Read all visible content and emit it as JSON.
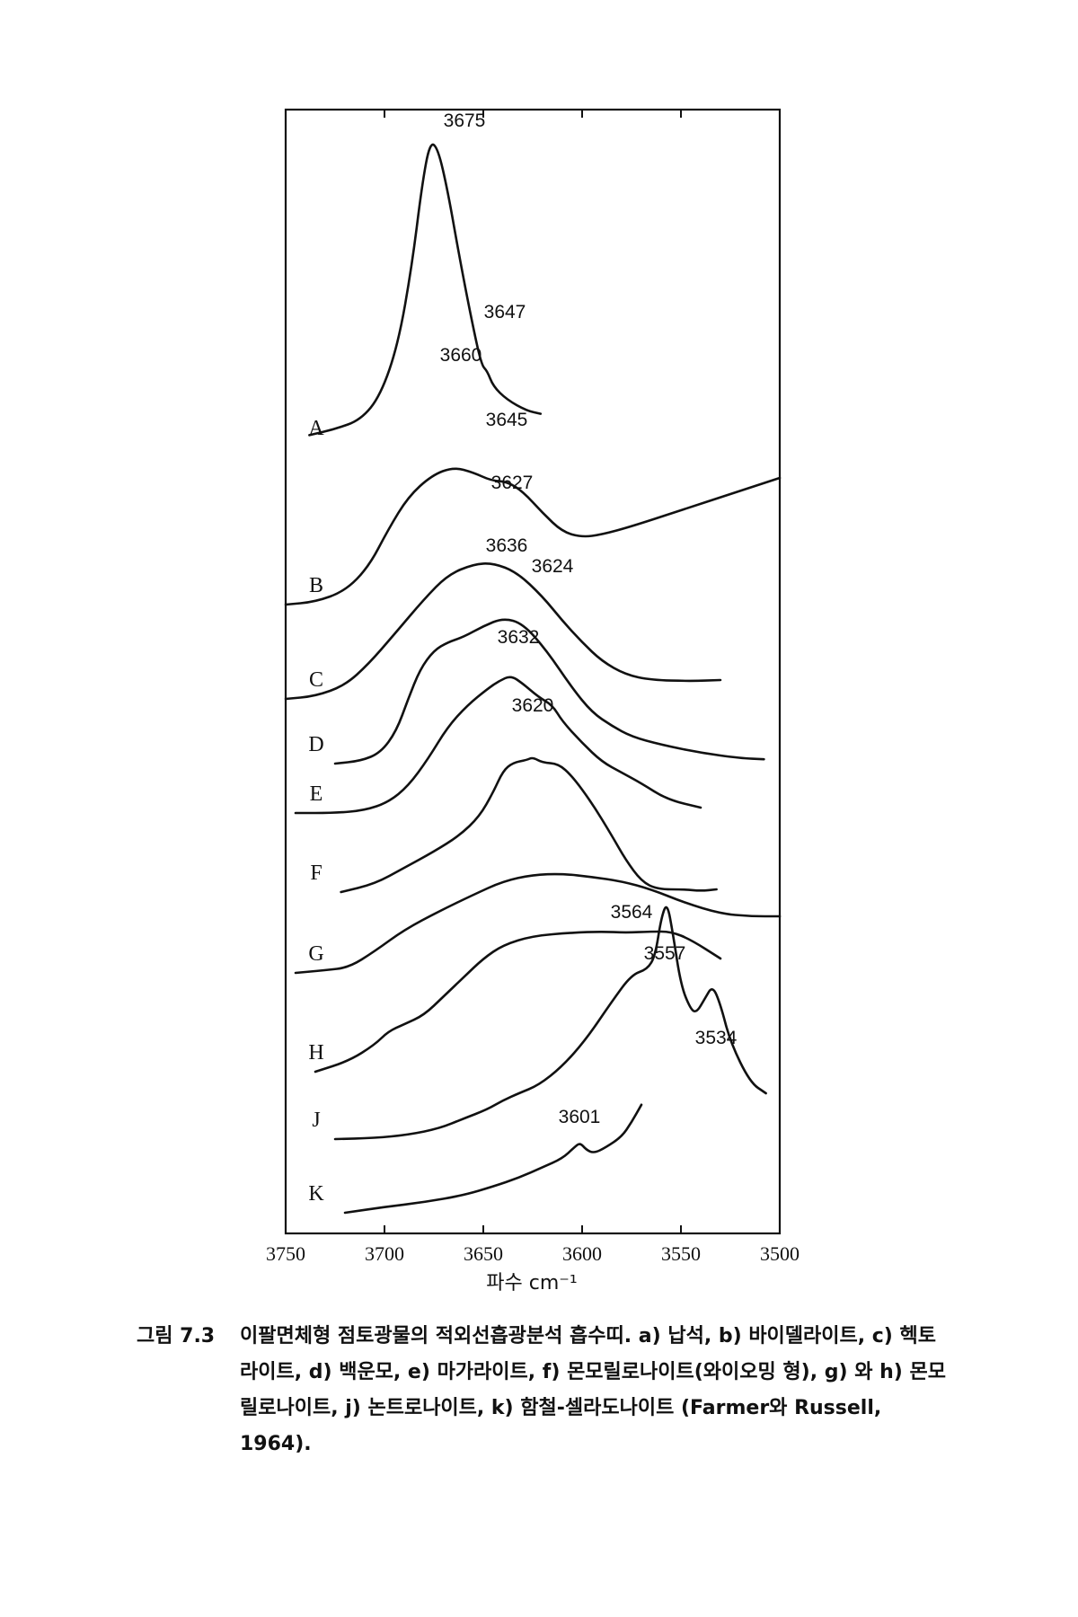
{
  "chart_data": {
    "type": "line",
    "x_axis": {
      "label": "파수 cm⁻¹",
      "range": [
        3750,
        3500
      ],
      "reversed": true,
      "ticks": [
        3750,
        3700,
        3650,
        3600,
        3550,
        3500
      ]
    },
    "y_axis": {
      "label": "",
      "ticks_shown": false
    },
    "grid": false,
    "series": [
      {
        "name": "A",
        "points": [
          [
            3738,
            0.2
          ],
          [
            3725,
            0.3
          ],
          [
            3712,
            0.45
          ],
          [
            3702,
            0.85
          ],
          [
            3693,
            1.7
          ],
          [
            3686,
            3.0
          ],
          [
            3681,
            4.3
          ],
          [
            3677,
            5.0
          ],
          [
            3673,
            4.9
          ],
          [
            3668,
            4.2
          ],
          [
            3662,
            3.1
          ],
          [
            3656,
            2.1
          ],
          [
            3651,
            1.35
          ],
          [
            3648,
            1.25
          ],
          [
            3645,
            1.0
          ],
          [
            3638,
            0.78
          ],
          [
            3628,
            0.6
          ],
          [
            3621,
            0.55
          ]
        ]
      },
      {
        "name": "B",
        "points": [
          [
            3750,
            0.0
          ],
          [
            3735,
            0.05
          ],
          [
            3720,
            0.25
          ],
          [
            3708,
            0.7
          ],
          [
            3698,
            1.4
          ],
          [
            3688,
            2.0
          ],
          [
            3676,
            2.4
          ],
          [
            3665,
            2.55
          ],
          [
            3655,
            2.45
          ],
          [
            3646,
            2.3
          ],
          [
            3638,
            2.28
          ],
          [
            3630,
            2.1
          ],
          [
            3620,
            1.7
          ],
          [
            3610,
            1.35
          ],
          [
            3600,
            1.25
          ],
          [
            3590,
            1.3
          ],
          [
            3575,
            1.45
          ],
          [
            3550,
            1.75
          ],
          [
            3525,
            2.05
          ],
          [
            3500,
            2.35
          ]
        ]
      },
      {
        "name": "C",
        "points": [
          [
            3750,
            0.0
          ],
          [
            3735,
            0.05
          ],
          [
            3720,
            0.25
          ],
          [
            3708,
            0.65
          ],
          [
            3695,
            1.2
          ],
          [
            3680,
            1.85
          ],
          [
            3668,
            2.3
          ],
          [
            3655,
            2.5
          ],
          [
            3645,
            2.52
          ],
          [
            3633,
            2.35
          ],
          [
            3620,
            1.9
          ],
          [
            3610,
            1.45
          ],
          [
            3600,
            1.05
          ],
          [
            3590,
            0.7
          ],
          [
            3578,
            0.45
          ],
          [
            3565,
            0.35
          ],
          [
            3545,
            0.33
          ],
          [
            3530,
            0.35
          ]
        ]
      },
      {
        "name": "D",
        "points": [
          [
            3725,
            0.0
          ],
          [
            3712,
            0.05
          ],
          [
            3702,
            0.2
          ],
          [
            3694,
            0.6
          ],
          [
            3688,
            1.2
          ],
          [
            3682,
            1.75
          ],
          [
            3675,
            2.1
          ],
          [
            3668,
            2.25
          ],
          [
            3660,
            2.35
          ],
          [
            3650,
            2.55
          ],
          [
            3640,
            2.7
          ],
          [
            3630,
            2.6
          ],
          [
            3618,
            2.1
          ],
          [
            3605,
            1.4
          ],
          [
            3595,
            0.95
          ],
          [
            3585,
            0.7
          ],
          [
            3575,
            0.5
          ],
          [
            3560,
            0.35
          ],
          [
            3540,
            0.2
          ],
          [
            3520,
            0.1
          ],
          [
            3508,
            0.08
          ]
        ]
      },
      {
        "name": "E",
        "points": [
          [
            3745,
            0.0
          ],
          [
            3725,
            0.0
          ],
          [
            3710,
            0.05
          ],
          [
            3698,
            0.2
          ],
          [
            3688,
            0.5
          ],
          [
            3678,
            1.0
          ],
          [
            3668,
            1.6
          ],
          [
            3658,
            2.0
          ],
          [
            3648,
            2.3
          ],
          [
            3642,
            2.45
          ],
          [
            3636,
            2.55
          ],
          [
            3630,
            2.4
          ],
          [
            3622,
            2.15
          ],
          [
            3615,
            2.0
          ],
          [
            3610,
            1.7
          ],
          [
            3600,
            1.3
          ],
          [
            3590,
            0.95
          ],
          [
            3580,
            0.75
          ],
          [
            3570,
            0.55
          ],
          [
            3557,
            0.25
          ],
          [
            3540,
            0.1
          ]
        ]
      },
      {
        "name": "F",
        "points": [
          [
            3722,
            0.0
          ],
          [
            3705,
            0.15
          ],
          [
            3690,
            0.45
          ],
          [
            3675,
            0.75
          ],
          [
            3662,
            1.05
          ],
          [
            3652,
            1.4
          ],
          [
            3645,
            1.85
          ],
          [
            3640,
            2.25
          ],
          [
            3635,
            2.4
          ],
          [
            3628,
            2.45
          ],
          [
            3625,
            2.5
          ],
          [
            3620,
            2.4
          ],
          [
            3612,
            2.38
          ],
          [
            3605,
            2.15
          ],
          [
            3595,
            1.65
          ],
          [
            3585,
            1.05
          ],
          [
            3578,
            0.6
          ],
          [
            3570,
            0.2
          ],
          [
            3562,
            0.05
          ],
          [
            3548,
            0.05
          ],
          [
            3540,
            0.02
          ],
          [
            3532,
            0.05
          ]
        ]
      },
      {
        "name": "G",
        "points": [
          [
            3745,
            0.0
          ],
          [
            3730,
            0.05
          ],
          [
            3718,
            0.1
          ],
          [
            3705,
            0.4
          ],
          [
            3690,
            0.8
          ],
          [
            3672,
            1.15
          ],
          [
            3655,
            1.45
          ],
          [
            3640,
            1.7
          ],
          [
            3625,
            1.82
          ],
          [
            3610,
            1.84
          ],
          [
            3595,
            1.78
          ],
          [
            3580,
            1.7
          ],
          [
            3565,
            1.55
          ],
          [
            3548,
            1.3
          ],
          [
            3530,
            1.1
          ],
          [
            3515,
            1.05
          ],
          [
            3500,
            1.05
          ]
        ]
      },
      {
        "name": "H",
        "points": [
          [
            3735,
            0.0
          ],
          [
            3718,
            0.2
          ],
          [
            3705,
            0.5
          ],
          [
            3698,
            0.75
          ],
          [
            3690,
            0.88
          ],
          [
            3680,
            1.05
          ],
          [
            3670,
            1.4
          ],
          [
            3660,
            1.75
          ],
          [
            3650,
            2.1
          ],
          [
            3640,
            2.35
          ],
          [
            3625,
            2.52
          ],
          [
            3605,
            2.58
          ],
          [
            3590,
            2.6
          ],
          [
            3578,
            2.58
          ],
          [
            3565,
            2.6
          ],
          [
            3555,
            2.6
          ],
          [
            3545,
            2.45
          ],
          [
            3530,
            2.1
          ]
        ]
      },
      {
        "name": "J",
        "points": [
          [
            3725,
            0.0
          ],
          [
            3705,
            0.02
          ],
          [
            3688,
            0.08
          ],
          [
            3672,
            0.2
          ],
          [
            3660,
            0.38
          ],
          [
            3648,
            0.55
          ],
          [
            3640,
            0.72
          ],
          [
            3632,
            0.85
          ],
          [
            3622,
            1.0
          ],
          [
            3610,
            1.35
          ],
          [
            3598,
            1.85
          ],
          [
            3585,
            2.55
          ],
          [
            3575,
            3.05
          ],
          [
            3567,
            3.15
          ],
          [
            3563,
            3.4
          ],
          [
            3560,
            4.1
          ],
          [
            3557,
            4.4
          ],
          [
            3554,
            3.8
          ],
          [
            3550,
            2.85
          ],
          [
            3545,
            2.4
          ],
          [
            3542,
            2.35
          ],
          [
            3538,
            2.6
          ],
          [
            3534,
            2.85
          ],
          [
            3530,
            2.5
          ],
          [
            3525,
            1.8
          ],
          [
            3515,
            1.05
          ],
          [
            3507,
            0.85
          ]
        ]
      },
      {
        "name": "K",
        "points": [
          [
            3720,
            0.0
          ],
          [
            3700,
            0.1
          ],
          [
            3680,
            0.18
          ],
          [
            3660,
            0.3
          ],
          [
            3645,
            0.45
          ],
          [
            3632,
            0.6
          ],
          [
            3620,
            0.78
          ],
          [
            3610,
            0.93
          ],
          [
            3604,
            1.12
          ],
          [
            3601,
            1.2
          ],
          [
            3598,
            1.08
          ],
          [
            3594,
            1.02
          ],
          [
            3588,
            1.12
          ],
          [
            3580,
            1.3
          ],
          [
            3575,
            1.55
          ],
          [
            3570,
            1.85
          ]
        ]
      }
    ],
    "annotations": [
      "3675",
      "3647",
      "3660",
      "3645",
      "3627",
      "3636",
      "3624",
      "3632",
      "3620",
      "3564",
      "3557",
      "3534",
      "3601"
    ]
  },
  "caption": {
    "figure_number": "그림 7.3",
    "text": "이팔면체형 점토광물의 적외선흡광분석 흡수띠. a) 납석, b) 바이델라이트, c) 헥토라이트, d) 백운모, e) 마가라이트, f) 몬모릴로나이트(와이오밍 형), g) 와 h) 몬모릴로나이트, j) 논트로나이트, k) 함철-셀라도나이트 (Farmer와 Russell, 1964)."
  }
}
